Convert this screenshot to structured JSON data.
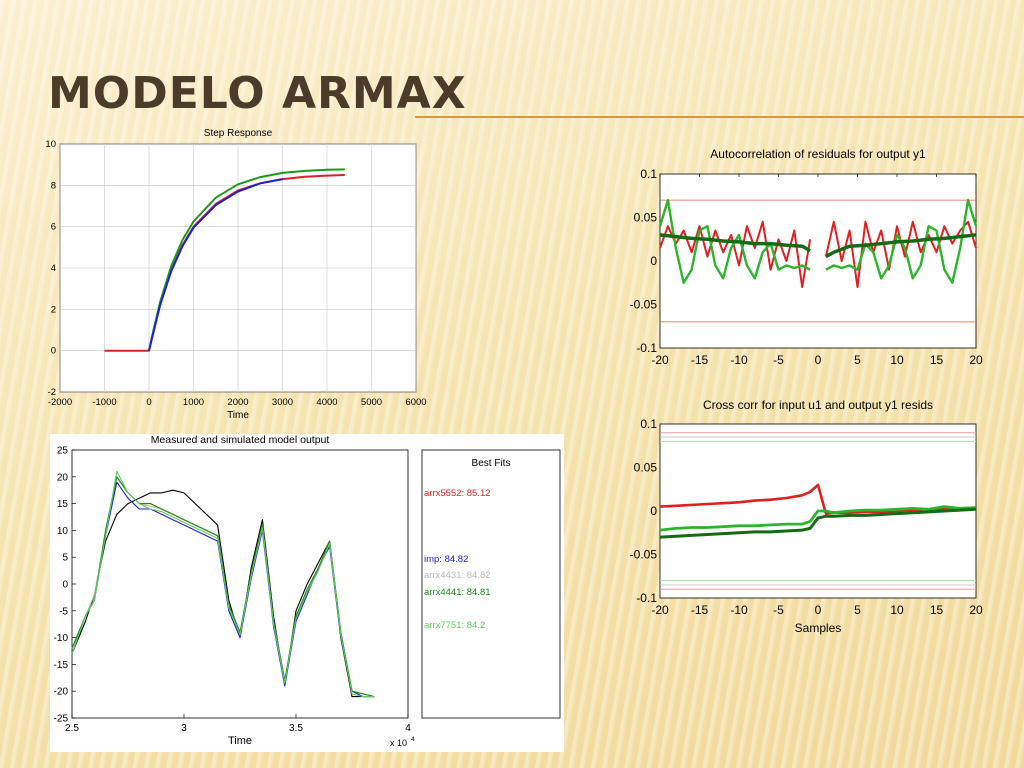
{
  "slide": {
    "title": "MODELO ARMAX",
    "accent_color": "#d89a3c",
    "title_color": "#4b3b28"
  },
  "chart_data": [
    {
      "type": "line",
      "title": "Step Response",
      "xlabel": "Time",
      "ylabel": "",
      "xlim": [
        -2000,
        6000
      ],
      "ylim": [
        -2,
        10
      ],
      "xticks": [
        -2000,
        -1000,
        0,
        1000,
        2000,
        3000,
        4000,
        5000,
        6000
      ],
      "yticks": [
        -2,
        0,
        2,
        4,
        6,
        8,
        10
      ],
      "grid": true,
      "series": [
        {
          "color": "#e02020",
          "x": [
            -1000,
            0,
            100,
            250,
            500,
            750,
            1000,
            1500,
            2000,
            2500,
            3000,
            3500,
            4000,
            4400
          ],
          "y": [
            0,
            0,
            0.95,
            2.25,
            3.9,
            5.1,
            6.0,
            7.1,
            7.75,
            8.1,
            8.3,
            8.42,
            8.47,
            8.5
          ]
        },
        {
          "color": "#1a9a1a",
          "x": [
            0,
            100,
            250,
            500,
            750,
            1000,
            1500,
            2000,
            2500,
            3000,
            3500,
            4000,
            4400
          ],
          "y": [
            0,
            1.0,
            2.35,
            4.1,
            5.35,
            6.25,
            7.4,
            8.05,
            8.4,
            8.6,
            8.7,
            8.75,
            8.77
          ]
        },
        {
          "color": "#2020d0",
          "x": [
            0,
            100,
            250,
            500,
            750,
            1000,
            1500,
            2000,
            2500,
            3000
          ],
          "y": [
            0,
            0.9,
            2.2,
            3.85,
            5.05,
            5.95,
            7.05,
            7.7,
            8.1,
            8.3
          ]
        }
      ]
    },
    {
      "type": "line",
      "title": "Measured and simulated model output",
      "xlabel": "Time",
      "ylabel": "",
      "x_multiplier": "x 10",
      "x_multiplier_exp": "4",
      "xlim": [
        2.5,
        4
      ],
      "ylim": [
        -25,
        25
      ],
      "xticks": [
        2.5,
        3,
        3.5,
        4
      ],
      "yticks": [
        -25,
        -20,
        -15,
        -10,
        -5,
        0,
        5,
        10,
        15,
        20,
        25
      ],
      "grid": false,
      "series": [
        {
          "color": "#000000",
          "x": [
            2.5,
            2.56,
            2.6,
            2.65,
            2.7,
            2.75,
            2.8,
            2.85,
            2.9,
            2.95,
            3.0,
            3.05,
            3.1,
            3.15,
            3.2,
            3.25,
            3.3,
            3.35,
            3.4,
            3.45,
            3.5,
            3.55,
            3.6,
            3.65,
            3.7,
            3.75,
            3.8,
            3.85
          ],
          "y": [
            -13,
            -7,
            -2,
            8,
            13,
            15,
            16,
            17,
            17,
            17.5,
            17,
            15,
            13,
            11,
            -3,
            -10,
            3,
            12,
            -6,
            -19,
            -5,
            0,
            4,
            8,
            -10,
            -21,
            -21,
            -21
          ]
        },
        {
          "color": "#e02020",
          "x": [
            2.5,
            2.56,
            2.6,
            2.65,
            2.7,
            2.75,
            2.8,
            2.85,
            2.9,
            2.95,
            3.0,
            3.05,
            3.1,
            3.15,
            3.2,
            3.25,
            3.3,
            3.35,
            3.4,
            3.45,
            3.5,
            3.55,
            3.6,
            3.65,
            3.7,
            3.75,
            3.8,
            3.85
          ],
          "y": [
            -12,
            -6,
            -3,
            10,
            20,
            17,
            15,
            15,
            14,
            13,
            12,
            11,
            10,
            9,
            -4,
            -9,
            2,
            11,
            -7,
            -18,
            -6,
            -1,
            3,
            8,
            -9,
            -20,
            -20.5,
            -21
          ]
        },
        {
          "color": "#2020d0",
          "x": [
            2.5,
            2.56,
            2.6,
            2.65,
            2.7,
            2.75,
            2.8,
            2.85,
            2.9,
            2.95,
            3.0,
            3.05,
            3.1,
            3.15,
            3.2,
            3.25,
            3.3,
            3.35,
            3.4,
            3.45,
            3.5,
            3.55,
            3.6,
            3.65,
            3.7,
            3.75,
            3.8,
            3.85
          ],
          "y": [
            -13,
            -6,
            -3,
            9,
            19,
            16,
            14,
            14,
            13,
            12,
            11,
            10,
            9,
            8,
            -5,
            -10,
            1,
            10,
            -8,
            -19,
            -7,
            -2,
            3,
            7,
            -10,
            -20,
            -21,
            -21
          ]
        },
        {
          "color": "#bbbbbb",
          "x": [
            2.5,
            2.56,
            2.6,
            2.65,
            2.7,
            2.75,
            2.8,
            2.85,
            2.9,
            2.95,
            3.0,
            3.05,
            3.1,
            3.15,
            3.2,
            3.25,
            3.3,
            3.35,
            3.4,
            3.45,
            3.5,
            3.55,
            3.6,
            3.65,
            3.7,
            3.75,
            3.8,
            3.85
          ],
          "y": [
            -12,
            -6,
            -2,
            10,
            20,
            17,
            15,
            14.5,
            14,
            13,
            12,
            11,
            10,
            9,
            -4,
            -9,
            2,
            11,
            -7,
            -18,
            -6,
            -1,
            3,
            8,
            -9,
            -20,
            -20.5,
            -21
          ]
        },
        {
          "color": "#1a8a1a",
          "x": [
            2.5,
            2.56,
            2.6,
            2.65,
            2.7,
            2.75,
            2.8,
            2.85,
            2.9,
            2.95,
            3.0,
            3.05,
            3.1,
            3.15,
            3.2,
            3.25,
            3.3,
            3.35,
            3.4,
            3.45,
            3.5,
            3.55,
            3.6,
            3.65,
            3.7,
            3.75,
            3.8,
            3.85
          ],
          "y": [
            -12,
            -6,
            -3,
            10,
            20,
            17,
            15,
            15,
            14,
            13,
            12,
            11,
            10,
            9,
            -4,
            -9,
            2,
            11,
            -7,
            -18,
            -6,
            -1,
            3,
            8,
            -9,
            -20,
            -20.5,
            -21
          ]
        },
        {
          "color": "#5ad05a",
          "x": [
            2.5,
            2.56,
            2.6,
            2.65,
            2.7,
            2.75,
            2.8,
            2.85,
            2.9,
            2.95,
            3.0,
            3.05,
            3.1,
            3.15,
            3.2,
            3.25,
            3.3,
            3.35,
            3.4,
            3.45,
            3.5,
            3.55,
            3.6,
            3.65,
            3.7,
            3.75,
            3.8,
            3.85
          ],
          "y": [
            -13,
            -6,
            -3,
            9,
            21,
            17,
            15,
            14,
            13.5,
            12.5,
            11.5,
            10.5,
            9.5,
            8.5,
            -4.5,
            -9.5,
            1.5,
            10.5,
            -7.5,
            -18.5,
            -6.5,
            -1.5,
            2.5,
            7.5,
            -9.5,
            -20.5,
            -21,
            -21
          ]
        }
      ]
    },
    {
      "type": "line",
      "title": "Autocorrelation of residuals for output y1",
      "xlabel": "",
      "ylabel": "",
      "xlim": [
        -20,
        20
      ],
      "ylim": [
        -0.1,
        0.1
      ],
      "xticks": [
        -20,
        -15,
        -10,
        -5,
        0,
        5,
        10,
        15,
        20
      ],
      "yticks": [
        -0.1,
        -0.05,
        0,
        0.05,
        0.1
      ],
      "ytick_labels": [
        "-0.1",
        "-0.05",
        "0",
        "0.05",
        "0.1"
      ],
      "grid": false,
      "confidence_band": [
        -0.07,
        0.07
      ],
      "series": [
        {
          "color": "#e02020",
          "x": [
            -20,
            -19,
            -18,
            -17,
            -16,
            -15,
            -14,
            -13,
            -12,
            -11,
            -10,
            -9,
            -8,
            -7,
            -6,
            -5,
            -4,
            -3,
            -2,
            -1,
            1,
            2,
            3,
            4,
            5,
            6,
            7,
            8,
            9,
            10,
            11,
            12,
            13,
            14,
            15,
            16,
            17,
            18,
            19,
            20
          ],
          "y": [
            0.015,
            0.04,
            0.02,
            0.035,
            0.01,
            0.04,
            0.005,
            0.035,
            0.01,
            0.03,
            -0.005,
            0.04,
            0.015,
            0.045,
            -0.01,
            0.025,
            0.0,
            0.035,
            -0.03,
            0.025,
            0.005,
            0.045,
            0.0,
            0.035,
            -0.03,
            0.045,
            0.01,
            0.035,
            -0.01,
            0.04,
            0.005,
            0.045,
            0.01,
            0.03,
            0.01,
            0.04,
            0.02,
            0.035,
            0.045,
            0.015
          ]
        },
        {
          "color": "#2cb52c",
          "x": [
            -20,
            -19,
            -18,
            -17,
            -16,
            -15,
            -14,
            -13,
            -12,
            -11,
            -10,
            -9,
            -8,
            -7,
            -6,
            -5,
            -4,
            -3,
            -2,
            -1,
            1,
            2,
            3,
            4,
            5,
            6,
            7,
            8,
            9,
            10,
            11,
            12,
            13,
            14,
            15,
            16,
            17,
            18,
            19,
            20
          ],
          "y": [
            0.04,
            0.07,
            0.015,
            -0.025,
            -0.01,
            0.035,
            0.04,
            -0.005,
            -0.02,
            0.015,
            0.03,
            -0.005,
            -0.02,
            0.01,
            0.02,
            -0.01,
            -0.005,
            -0.008,
            -0.005,
            -0.01,
            -0.01,
            -0.005,
            -0.008,
            -0.005,
            -0.01,
            0.02,
            0.01,
            -0.02,
            -0.005,
            0.03,
            0.015,
            -0.02,
            -0.005,
            0.04,
            0.035,
            -0.01,
            -0.025,
            0.015,
            0.07,
            0.04
          ]
        },
        {
          "color": "#136b13",
          "x": [
            -20,
            -18,
            -16,
            -14,
            -12,
            -10,
            -8,
            -6,
            -4,
            -2,
            -1,
            1,
            2,
            4,
            6,
            8,
            10,
            12,
            14,
            16,
            18,
            20
          ],
          "y": [
            0.03,
            0.028,
            0.026,
            0.025,
            0.023,
            0.022,
            0.02,
            0.02,
            0.018,
            0.017,
            0.012,
            0.005,
            0.01,
            0.017,
            0.018,
            0.02,
            0.022,
            0.023,
            0.025,
            0.026,
            0.028,
            0.03
          ]
        }
      ]
    },
    {
      "type": "line",
      "title": "Cross corr for input u1 and output y1 resids",
      "xlabel": "Samples",
      "ylabel": "",
      "xlim": [
        -20,
        20
      ],
      "ylim": [
        -0.1,
        0.1
      ],
      "xticks": [
        -20,
        -15,
        -10,
        -5,
        0,
        5,
        10,
        15,
        20
      ],
      "yticks": [
        -0.1,
        -0.05,
        0,
        0.05,
        0.1
      ],
      "ytick_labels": [
        "-0.1",
        "-0.05",
        "0",
        "0.05",
        "0.1"
      ],
      "grid": false,
      "confidence_bands": [
        {
          "color": "#e8a0a0",
          "values": [
            0.09,
            -0.09
          ]
        },
        {
          "color": "#a8dca8",
          "values": [
            0.08,
            -0.08
          ]
        },
        {
          "color": "#c8c8c8",
          "values": [
            0.085,
            -0.085
          ]
        }
      ],
      "series": [
        {
          "color": "#e02020",
          "x": [
            -20,
            -18,
            -16,
            -14,
            -12,
            -10,
            -8,
            -6,
            -4,
            -2,
            -1,
            0,
            1,
            2,
            4,
            6,
            8,
            10,
            12,
            14,
            16,
            18,
            20
          ],
          "y": [
            0.005,
            0.006,
            0.007,
            0.008,
            0.009,
            0.01,
            0.012,
            0.013,
            0.015,
            0.018,
            0.022,
            0.03,
            -0.003,
            -0.002,
            -0.002,
            -0.001,
            -0.001,
            0.0,
            0.001,
            0.002,
            0.002,
            0.003,
            0.004
          ]
        },
        {
          "color": "#2cb52c",
          "x": [
            -20,
            -18,
            -16,
            -14,
            -12,
            -10,
            -8,
            -6,
            -4,
            -2,
            -1,
            0,
            1,
            2,
            4,
            6,
            8,
            10,
            12,
            14,
            16,
            18,
            20
          ],
          "y": [
            -0.022,
            -0.02,
            -0.019,
            -0.019,
            -0.018,
            -0.017,
            -0.017,
            -0.016,
            -0.015,
            -0.015,
            -0.012,
            0.0,
            0.0,
            -0.002,
            0.0,
            0.001,
            0.001,
            0.002,
            0.003,
            0.002,
            0.005,
            0.003,
            0.004
          ]
        },
        {
          "color": "#136b13",
          "x": [
            -20,
            -18,
            -16,
            -14,
            -12,
            -10,
            -8,
            -6,
            -4,
            -2,
            -1,
            0,
            1,
            2,
            4,
            6,
            8,
            10,
            12,
            14,
            16,
            18,
            20
          ],
          "y": [
            -0.03,
            -0.029,
            -0.028,
            -0.027,
            -0.026,
            -0.025,
            -0.024,
            -0.024,
            -0.023,
            -0.022,
            -0.02,
            -0.008,
            -0.006,
            -0.006,
            -0.005,
            -0.005,
            -0.004,
            -0.003,
            -0.002,
            -0.001,
            0.0,
            0.001,
            0.002
          ]
        }
      ]
    }
  ],
  "best_fits": {
    "title": "Best Fits",
    "entries": [
      {
        "text": "arrx5552: 85.12",
        "color": "#e02020"
      },
      {
        "text": "imp: 84.82",
        "color": "#2020d0"
      },
      {
        "text": "arrx4431: 84.82",
        "color": "#bbbbbb"
      },
      {
        "text": "arrx4441: 84.81",
        "color": "#1a8a1a"
      },
      {
        "text": "arrx7751: 84.2",
        "color": "#5ad05a"
      }
    ]
  }
}
